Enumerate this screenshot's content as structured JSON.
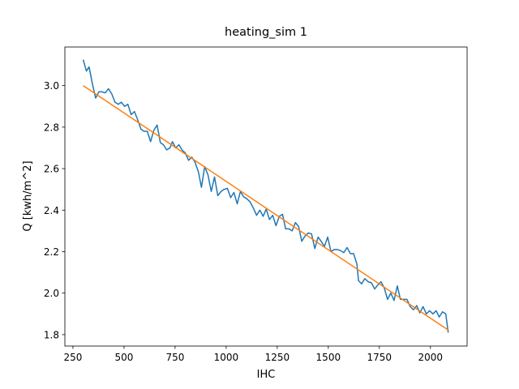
{
  "chart_data": {
    "type": "line",
    "title": "heating_sim 1",
    "x_label": "IHC",
    "y_label": "Q [kwh/m^2]",
    "xlim": [
      210.5,
      2179.5
    ],
    "ylim": [
      1.745,
      3.186
    ],
    "xticks": [
      250,
      500,
      750,
      1000,
      1250,
      1500,
      1750,
      2000
    ],
    "yticks": [
      1.8,
      {
        "value": 2.0,
        "label": "2.0"
      },
      2.2,
      2.4,
      2.6,
      2.8,
      {
        "value": 3.0,
        "label": "3.0"
      }
    ],
    "grid": false,
    "series": [
      {
        "color": "#1f77b4",
        "x": [
          300,
          316,
          329,
          345,
          361,
          377,
          392,
          408,
          424,
          440,
          456,
          472,
          487,
          503,
          519,
          535,
          551,
          567,
          583,
          598,
          614,
          630,
          646,
          662,
          678,
          693,
          709,
          725,
          737,
          753,
          769,
          784,
          800,
          816,
          832,
          848,
          864,
          879,
          895,
          911,
          927,
          943,
          959,
          975,
          990,
          1006,
          1022,
          1038,
          1054,
          1070,
          1085,
          1101,
          1117,
          1133,
          1149,
          1165,
          1181,
          1196,
          1212,
          1228,
          1244,
          1260,
          1276,
          1291,
          1307,
          1323,
          1339,
          1355,
          1370,
          1386,
          1402,
          1418,
          1434,
          1450,
          1465,
          1481,
          1497,
          1513,
          1529,
          1545,
          1560,
          1576,
          1592,
          1608,
          1624,
          1640,
          1648,
          1663,
          1679,
          1695,
          1711,
          1727,
          1743,
          1758,
          1774,
          1790,
          1806,
          1822,
          1838,
          1853,
          1869,
          1885,
          1901,
          1917,
          1933,
          1948,
          1964,
          1980,
          1996,
          2012,
          2028,
          2043,
          2059,
          2075,
          2087
        ],
        "values": [
          3.125,
          3.07,
          3.09,
          3.01,
          2.94,
          2.97,
          2.97,
          2.965,
          2.985,
          2.96,
          2.92,
          2.91,
          2.92,
          2.9,
          2.91,
          2.86,
          2.875,
          2.835,
          2.79,
          2.78,
          2.78,
          2.73,
          2.785,
          2.81,
          2.725,
          2.715,
          2.69,
          2.7,
          2.73,
          2.7,
          2.715,
          2.69,
          2.675,
          2.64,
          2.655,
          2.63,
          2.585,
          2.51,
          2.61,
          2.57,
          2.49,
          2.56,
          2.47,
          2.49,
          2.5,
          2.505,
          2.46,
          2.485,
          2.43,
          2.49,
          2.465,
          2.455,
          2.44,
          2.41,
          2.375,
          2.4,
          2.37,
          2.405,
          2.355,
          2.375,
          2.325,
          2.37,
          2.38,
          2.31,
          2.31,
          2.3,
          2.34,
          2.32,
          2.25,
          2.275,
          2.29,
          2.285,
          2.215,
          2.27,
          2.25,
          2.225,
          2.27,
          2.2,
          2.21,
          2.21,
          2.205,
          2.195,
          2.22,
          2.19,
          2.19,
          2.14,
          2.06,
          2.045,
          2.07,
          2.055,
          2.05,
          2.02,
          2.04,
          2.055,
          2.025,
          1.97,
          2.0,
          1.965,
          2.035,
          1.97,
          1.97,
          1.97,
          1.935,
          1.92,
          1.94,
          1.905,
          1.935,
          1.9,
          1.915,
          1.9,
          1.915,
          1.885,
          1.91,
          1.9,
          1.81
        ]
      },
      {
        "color": "#ff7f0e",
        "x": [
          300,
          2090
        ],
        "values": [
          3.0,
          1.82
        ]
      }
    ]
  }
}
